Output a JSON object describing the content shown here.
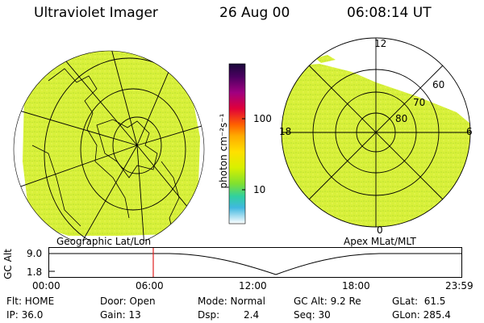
{
  "header": {
    "instrument": "Ultraviolet Imager",
    "date": "26 Aug 00",
    "time": "06:08:14 UT"
  },
  "colorbar": {
    "unit_label": "photon cm⁻²s⁻¹",
    "ticks": [
      "100",
      "10"
    ],
    "colors": [
      "#1a0a3a",
      "#4a0060",
      "#7a0090",
      "#b00070",
      "#e0003a",
      "#ff6000",
      "#ffaa00",
      "#ffe000",
      "#d8f000",
      "#90e030",
      "#30d0a0",
      "#30b8d8",
      "#a0e0f0",
      "#ffffff"
    ]
  },
  "left_map": {
    "caption": "Geographic Lat/Lon",
    "fill_color": "#d8f03a"
  },
  "right_map": {
    "caption": "Apex MLat/MLT",
    "mlt_labels": {
      "top": "12",
      "left": "18",
      "right": "6",
      "bottom": "0"
    },
    "mlat_labels": [
      "60",
      "70",
      "80"
    ],
    "fill_color": "#d8f03a"
  },
  "altitude_panel": {
    "axis_label": "GC Alt",
    "y_ticks": [
      "9.0",
      "1.8"
    ],
    "x_ticks": [
      "00:00",
      "06:00",
      "12:00",
      "18:00",
      "23:59"
    ],
    "marker_color": "#e02020"
  },
  "status": {
    "flt": "Flt: HOME",
    "ip": "IP: 36.0",
    "door": "Door: Open",
    "gain": "Gain: 13",
    "mode": "Mode: Normal",
    "dsp_label": "Dsp:",
    "dsp_value": "2.4",
    "gc_alt": "GC Alt: 9.2 Re",
    "seq": "Seq: 30",
    "glat": "GLat:  61.5",
    "glon": "GLon: 285.4"
  }
}
